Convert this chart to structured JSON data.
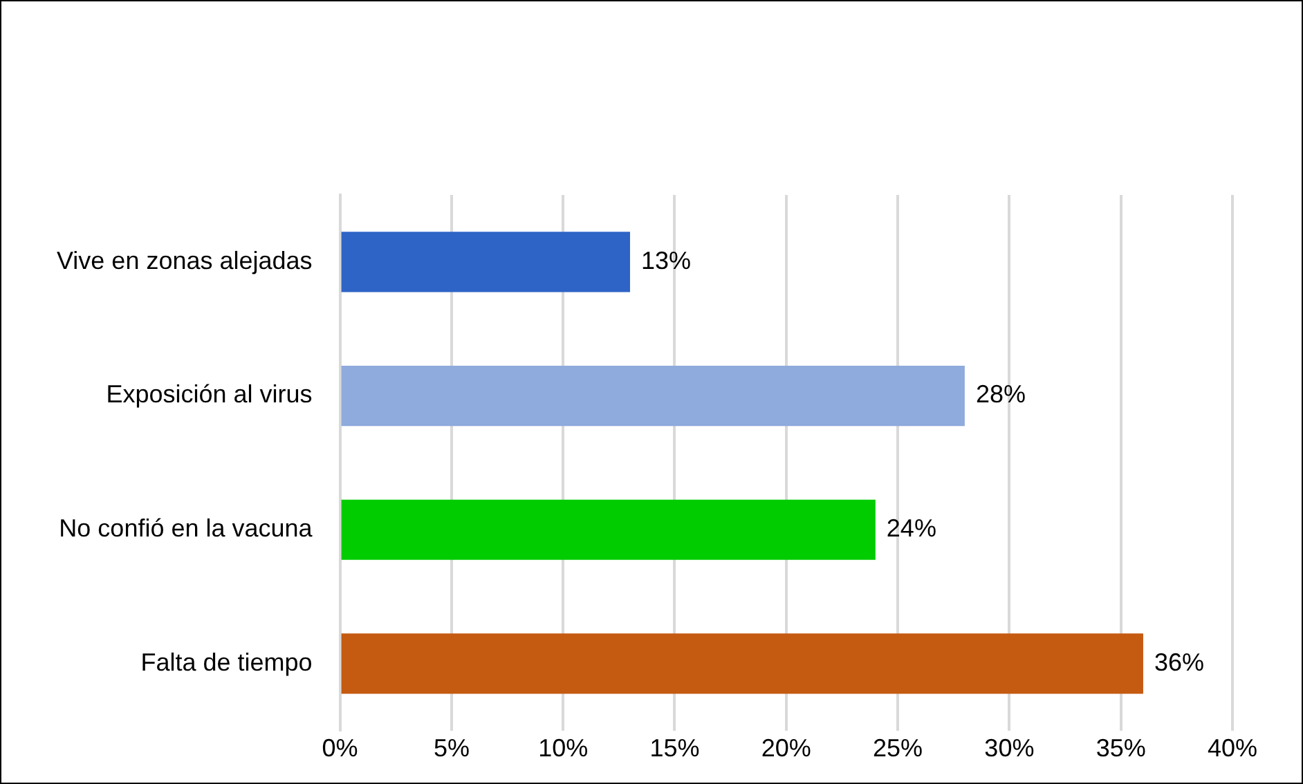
{
  "chart_data": {
    "type": "bar",
    "orientation": "horizontal",
    "categories": [
      "Vive en zonas alejadas",
      "Exposición al virus",
      "No confió en la vacuna",
      "Falta de tiempo"
    ],
    "values": [
      13,
      28,
      24,
      36
    ],
    "colors": [
      "#2e64c6",
      "#8faadc",
      "#00cc00",
      "#c55a11"
    ],
    "value_labels": [
      "13%",
      "28%",
      "24%",
      "36%"
    ],
    "xlim": [
      0,
      40
    ],
    "xticks": [
      {
        "value": 0,
        "label": "0%"
      },
      {
        "value": 5,
        "label": "5%"
      },
      {
        "value": 10,
        "label": "10%"
      },
      {
        "value": 15,
        "label": "15%"
      },
      {
        "value": 20,
        "label": "20%"
      },
      {
        "value": 25,
        "label": "25%"
      },
      {
        "value": 30,
        "label": "30%"
      },
      {
        "value": 35,
        "label": "35%"
      },
      {
        "value": 40,
        "label": "40%"
      }
    ],
    "grid": "x",
    "legend": false
  }
}
